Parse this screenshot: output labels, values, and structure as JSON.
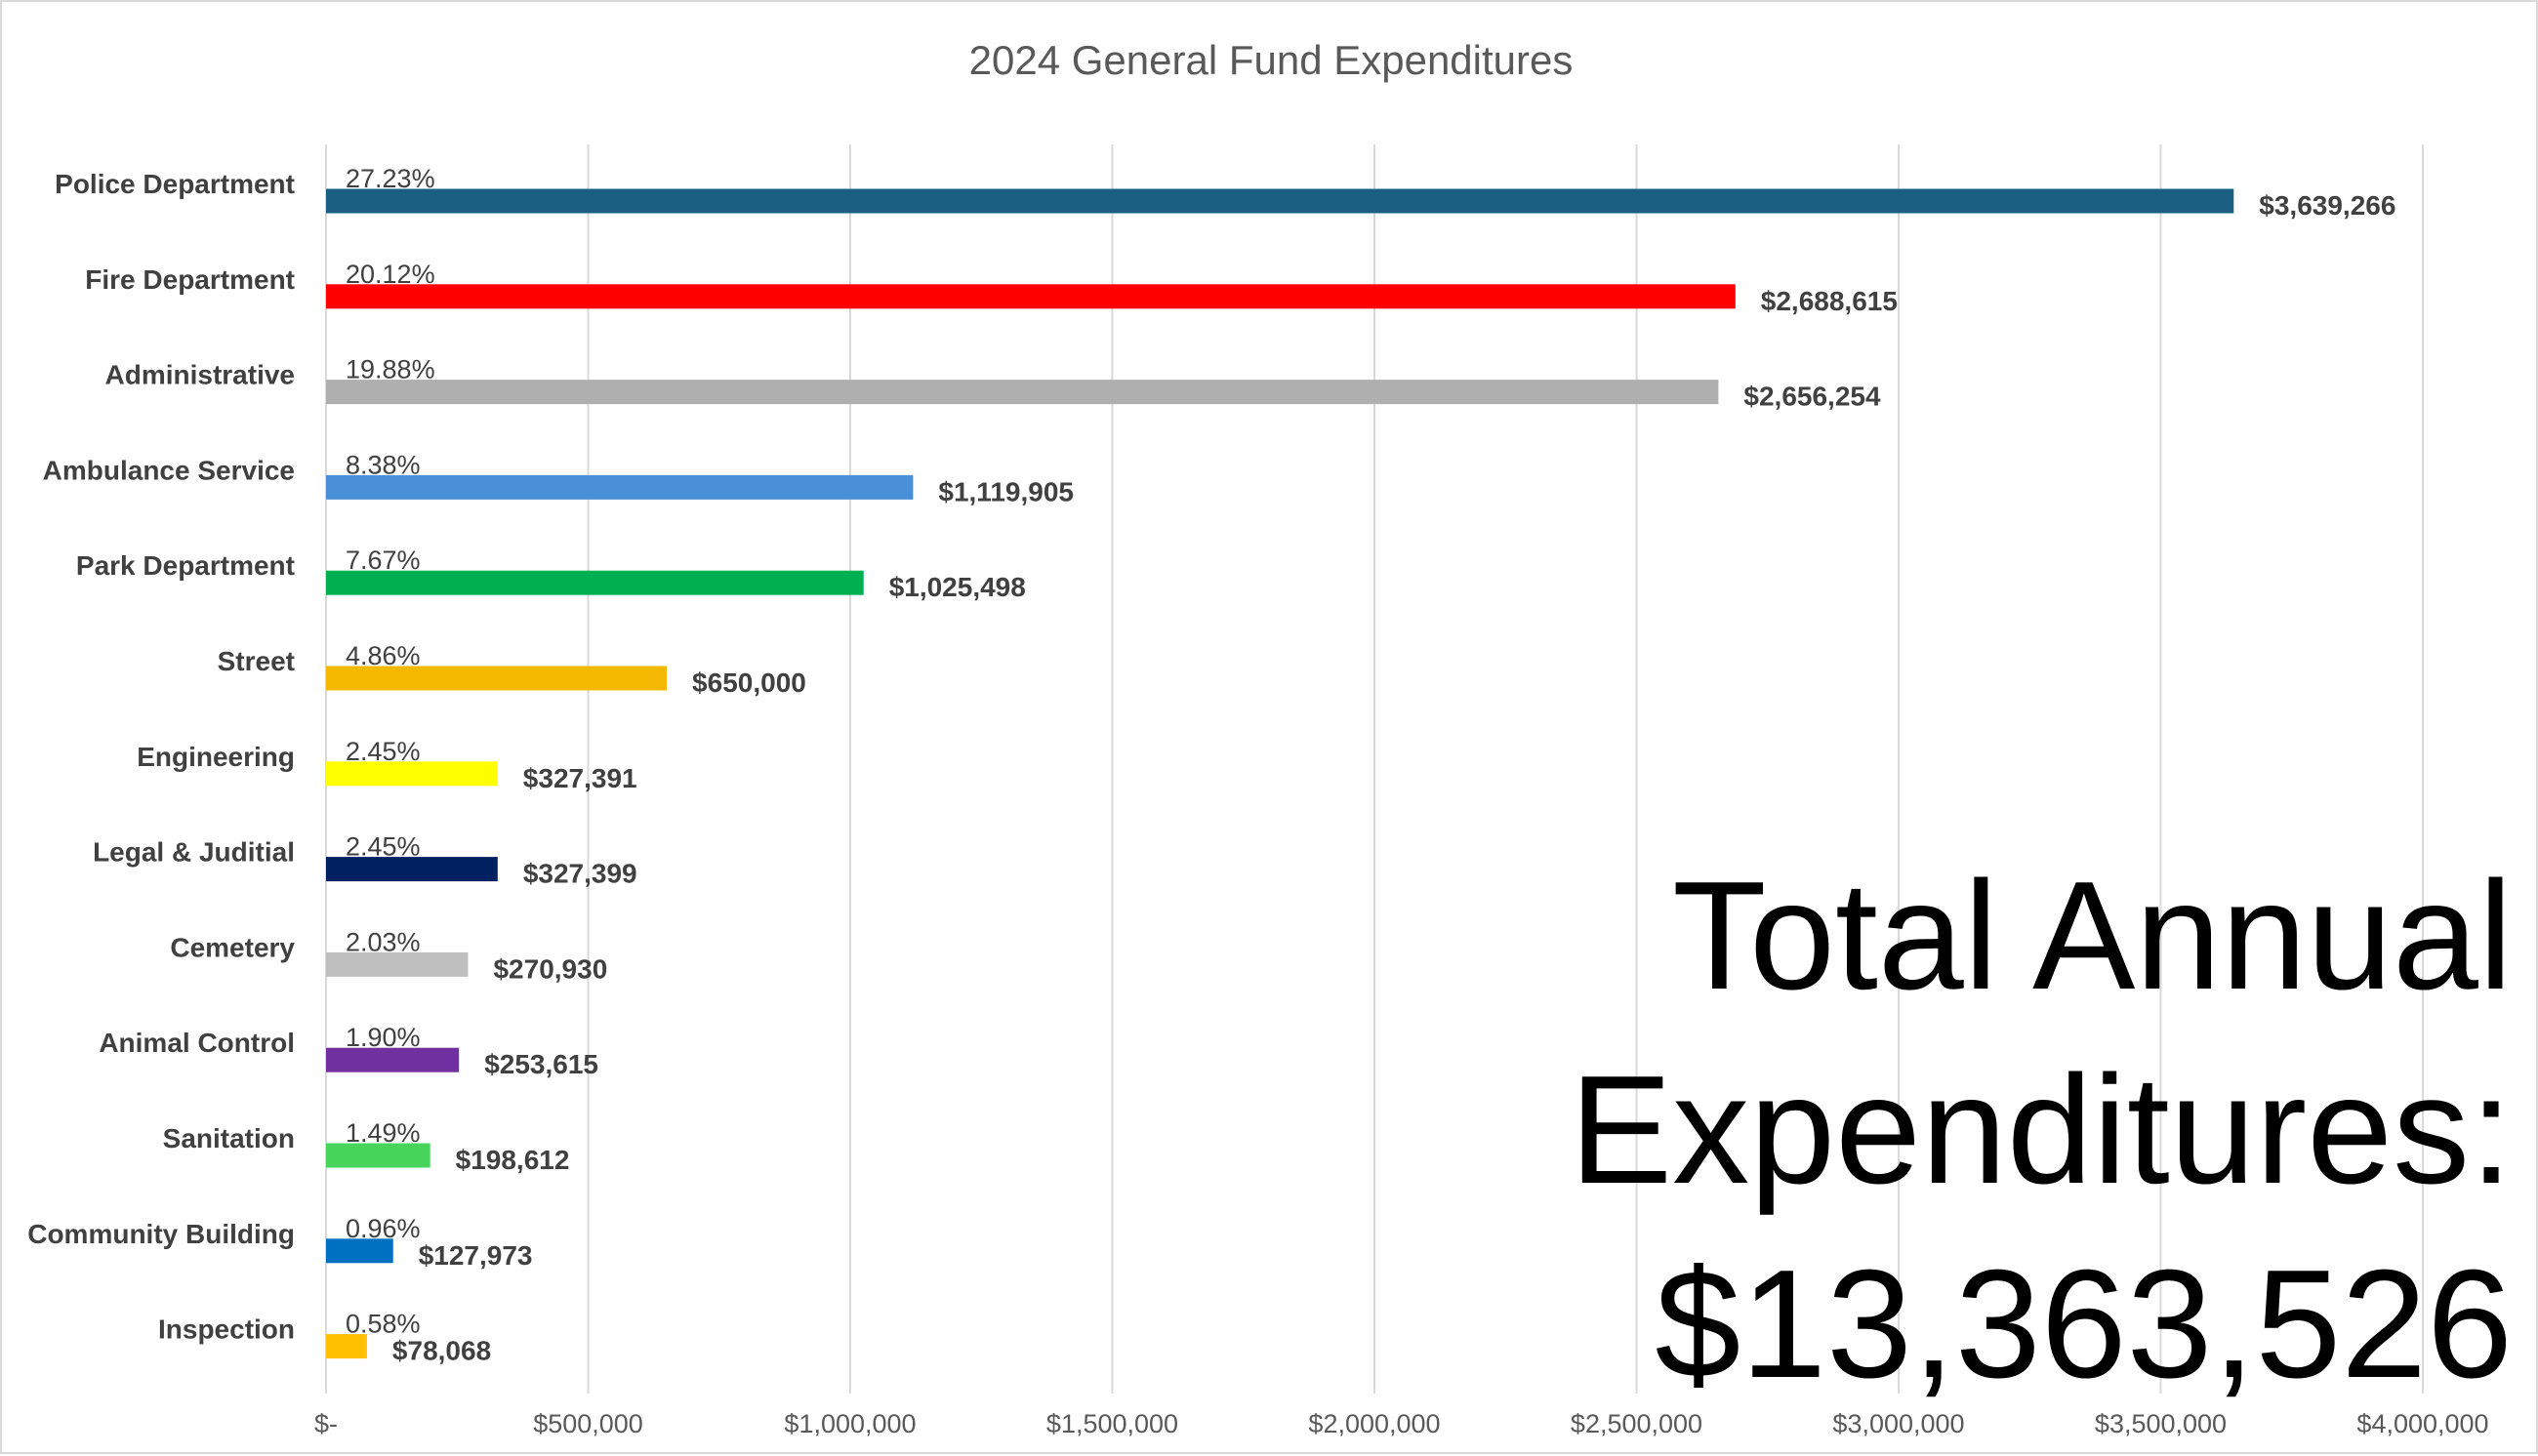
{
  "chart_data": {
    "type": "bar",
    "orientation": "horizontal",
    "title": "2024 General Fund Expenditures",
    "xlabel": "",
    "ylabel": "",
    "xlim": [
      0,
      4000000
    ],
    "grid": true,
    "x_ticks": [
      "$-",
      "$500,000",
      "$1,000,000",
      "$1,500,000",
      "$2,000,000",
      "$2,500,000",
      "$3,000,000",
      "$3,500,000",
      "$4,000,000"
    ],
    "categories": [
      "Police Department",
      "Fire Department",
      "Administrative",
      "Ambulance Service",
      "Park Department",
      "Street",
      "Engineering",
      "Legal & Juditial",
      "Cemetery",
      "Animal Control",
      "Sanitation",
      "Community Building",
      "Inspection"
    ],
    "values": [
      3639266,
      2688615,
      2656254,
      1119905,
      1025498,
      650000,
      327391,
      327399,
      270930,
      253615,
      198612,
      127973,
      78068
    ],
    "value_labels": [
      "$3,639,266",
      "$2,688,615",
      "$2,656,254",
      "$1,119,905",
      "$1,025,498",
      "$650,000",
      "$327,391",
      "$327,399",
      "$270,930",
      "$253,615",
      "$198,612",
      "$127,973",
      "$78,068"
    ],
    "percent_labels": [
      "27.23%",
      "20.12%",
      "19.88%",
      "8.38%",
      "7.67%",
      "4.86%",
      "2.45%",
      "2.45%",
      "2.03%",
      "1.90%",
      "1.49%",
      "0.96%",
      "0.58%"
    ],
    "colors": [
      "#1a5e82",
      "#ff0000",
      "#afafaf",
      "#4a90d9",
      "#00b050",
      "#f5b800",
      "#ffff00",
      "#002060",
      "#bfbfbf",
      "#7030a0",
      "#47d45a",
      "#0070c0",
      "#ffc000"
    ]
  },
  "annotation": {
    "lines": [
      "Total Annual",
      "Expenditures:",
      "$13,363,526"
    ]
  }
}
